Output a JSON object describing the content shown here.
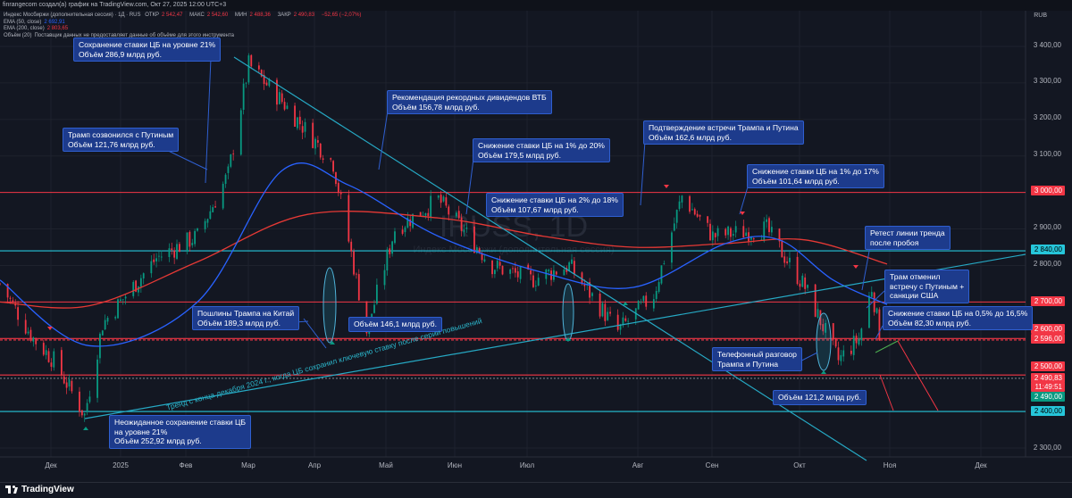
{
  "header": {
    "text": "finrangecom создал(а) график на TradingView.com, Окт 27, 2025 12:00 UTC+3"
  },
  "legend": {
    "instrument": "Индекс Мосбиржи (дополнительная сессия) · 1Д · RUS",
    "ohlc": [
      {
        "label": "ОТКР",
        "value": "2 542,47"
      },
      {
        "label": "МАКС",
        "value": "2 542,60"
      },
      {
        "label": "МИН",
        "value": "2 488,36"
      },
      {
        "label": "ЗАКР",
        "value": "2 490,83"
      },
      {
        "label": "",
        "value": "−52,65 (−2,07%)"
      }
    ],
    "ema50": {
      "label": "EMA (50, close)",
      "value": "2 692,91"
    },
    "ema200": {
      "label": "EMA (200, close)",
      "value": "2 803,65"
    },
    "volume": {
      "label": "Объём (20)",
      "value": "Поставщик данных не предоставляет данные об объёме для этого инструмента"
    }
  },
  "currency": "RUB",
  "watermark": {
    "symbol": "IRUSS, 1D",
    "name": "Индекс Мосбиржи (дополнительная сессия)"
  },
  "colors": {
    "background": "#131722",
    "bull": "#089981",
    "bear": "#f23645",
    "ema50": "#2962ff",
    "ema200": "#e53935",
    "level_red": "#f23645",
    "level_cyan": "#26c6da",
    "trend": "#26a9c4",
    "callout_bg": "#1d3b8c"
  },
  "price_axis": {
    "ticks": [
      "3 400,00",
      "3 300,00",
      "3 200,00",
      "3 100,00",
      "2 900,00",
      "2 800,00",
      "2 500,00",
      "2 300,00"
    ],
    "badges": [
      {
        "text": "3 000,00",
        "style": "red"
      },
      {
        "text": "2 840,00",
        "style": "cyan"
      },
      {
        "text": "2 700,00",
        "style": "red"
      },
      {
        "text": "2 600,00",
        "style": "red"
      },
      {
        "text": "2 596,00",
        "style": "red"
      },
      {
        "text": "2 500,00",
        "style": "red"
      },
      {
        "text": "2 490,83",
        "style": "red"
      },
      {
        "text": "11:49:51",
        "style": "red"
      },
      {
        "text": "2 490,00",
        "style": "green"
      },
      {
        "text": "2 400,00",
        "style": "cyan"
      }
    ]
  },
  "time_axis": {
    "labels": [
      "Дек",
      "2025",
      "Фев",
      "Мар",
      "Апр",
      "Май",
      "Июн",
      "Июл",
      "Авг",
      "Сен",
      "Окт",
      "Ноя",
      "Дек"
    ]
  },
  "horizontal_levels": [
    3000,
    2840,
    2700,
    2600,
    2596,
    2500,
    2400
  ],
  "annotations": [
    {
      "id": "a1",
      "lines": [
        "Сохранение ставки ЦБ на уровне 21%",
        "Объём 286,9 млрд руб."
      ]
    },
    {
      "id": "a2",
      "lines": [
        "Трамп созвонился с Путиным",
        "Объём 121,76 млрд руб."
      ]
    },
    {
      "id": "a3",
      "lines": [
        "Рекомендация рекордных дивидендов ВТБ",
        "Объём 156,78 млрд руб."
      ]
    },
    {
      "id": "a4",
      "lines": [
        "Снижение ставки ЦБ на 1% до 20%",
        "Объём 179,5 млрд руб."
      ]
    },
    {
      "id": "a5",
      "lines": [
        "Подтверждение встречи Трампа и Путина",
        "Объём 162,6 млрд руб."
      ]
    },
    {
      "id": "a6",
      "lines": [
        "Снижение ставки ЦБ на 1% до 17%",
        "Объём 101,64 млрд руб."
      ]
    },
    {
      "id": "a7",
      "lines": [
        "Снижение ставки ЦБ на 2% до 18%",
        "Объём 107,67 млрд руб."
      ]
    },
    {
      "id": "a8",
      "lines": [
        "Ретест линии тренда",
        "после пробоя"
      ]
    },
    {
      "id": "a9",
      "lines": [
        "Трам отменил",
        "встречу с Путиным +",
        "санкции США"
      ]
    },
    {
      "id": "a10",
      "lines": [
        "Снижение ставки ЦБ на 0,5% до 16,5%",
        "Объём 82,30 млрд руб."
      ]
    },
    {
      "id": "a11",
      "lines": [
        "Пошлины Трампа на Китай",
        "Объём 189,3 млрд руб."
      ]
    },
    {
      "id": "a12",
      "lines": [
        "Объём 146,1 млрд руб."
      ]
    },
    {
      "id": "a13",
      "lines": [
        "Телефонный разговор",
        "Трампа и Путина"
      ]
    },
    {
      "id": "a14",
      "lines": [
        "Объём 121,2 млрд руб."
      ]
    },
    {
      "id": "a15",
      "lines": [
        "Неожиданное сохранение ставки ЦБ",
        "на уровне 21%",
        "Объём 252,92 млрд руб."
      ]
    }
  ],
  "trendline_label": "Тренд с конца декабря 2024 г., когда ЦБ сохранил ключевую ставку после серии повышений",
  "branding": {
    "logo_text": "TradingView"
  },
  "chart_data": {
    "type": "candlestick",
    "x_range": [
      "2024-11-15",
      "2025-12-20"
    ],
    "ylim": [
      2250,
      3450
    ],
    "grid": true,
    "key_points": [
      {
        "x": "2024-11-15",
        "y": 2750
      },
      {
        "x": "2024-11-28",
        "y": 2600
      },
      {
        "x": "2024-12-06",
        "y": 2540
      },
      {
        "x": "2024-12-18",
        "y": 2390
      },
      {
        "x": "2024-12-25",
        "y": 2640
      },
      {
        "x": "2025-01-15",
        "y": 2820
      },
      {
        "x": "2025-01-31",
        "y": 2880
      },
      {
        "x": "2025-02-12",
        "y": 3050
      },
      {
        "x": "2025-02-20",
        "y": 3350
      },
      {
        "x": "2025-03-05",
        "y": 3250
      },
      {
        "x": "2025-03-25",
        "y": 3080
      },
      {
        "x": "2025-04-07",
        "y": 2620
      },
      {
        "x": "2025-04-18",
        "y": 2900
      },
      {
        "x": "2025-05-05",
        "y": 2980
      },
      {
        "x": "2025-05-26",
        "y": 2800
      },
      {
        "x": "2025-06-10",
        "y": 2760
      },
      {
        "x": "2025-06-25",
        "y": 2800
      },
      {
        "x": "2025-07-14",
        "y": 2620
      },
      {
        "x": "2025-07-28",
        "y": 2720
      },
      {
        "x": "2025-08-08",
        "y": 2990
      },
      {
        "x": "2025-08-20",
        "y": 2880
      },
      {
        "x": "2025-09-10",
        "y": 2900
      },
      {
        "x": "2025-09-25",
        "y": 2740
      },
      {
        "x": "2025-10-08",
        "y": 2540
      },
      {
        "x": "2025-10-16",
        "y": 2600
      },
      {
        "x": "2025-10-21",
        "y": 2740
      },
      {
        "x": "2025-10-27",
        "y": 2490.83
      }
    ],
    "ema50": [
      {
        "x": "2024-11-15",
        "y": 2760
      },
      {
        "x": "2024-12-20",
        "y": 2580
      },
      {
        "x": "2025-01-31",
        "y": 2700
      },
      {
        "x": "2025-03-05",
        "y": 3060
      },
      {
        "x": "2025-03-31",
        "y": 3020
      },
      {
        "x": "2025-05-05",
        "y": 2880
      },
      {
        "x": "2025-06-15",
        "y": 2780
      },
      {
        "x": "2025-07-20",
        "y": 2740
      },
      {
        "x": "2025-08-25",
        "y": 2860
      },
      {
        "x": "2025-09-15",
        "y": 2870
      },
      {
        "x": "2025-10-06",
        "y": 2760
      },
      {
        "x": "2025-10-27",
        "y": 2693
      }
    ],
    "ema200": [
      {
        "x": "2024-11-15",
        "y": 2700
      },
      {
        "x": "2024-12-20",
        "y": 2690
      },
      {
        "x": "2025-01-31",
        "y": 2810
      },
      {
        "x": "2025-03-15",
        "y": 2940
      },
      {
        "x": "2025-05-05",
        "y": 2930
      },
      {
        "x": "2025-06-15",
        "y": 2880
      },
      {
        "x": "2025-07-20",
        "y": 2850
      },
      {
        "x": "2025-08-25",
        "y": 2860
      },
      {
        "x": "2025-09-25",
        "y": 2870
      },
      {
        "x": "2025-10-27",
        "y": 2804
      }
    ]
  }
}
